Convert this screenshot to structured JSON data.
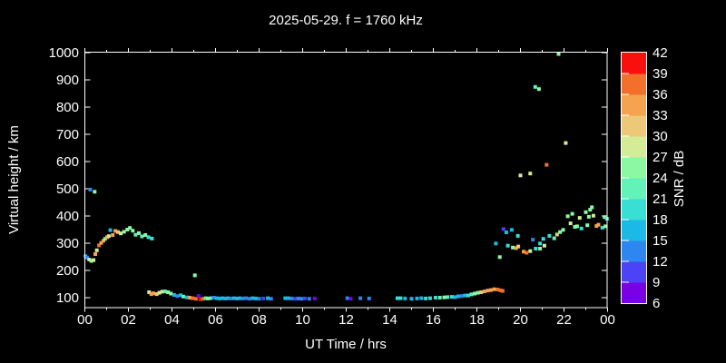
{
  "window": {
    "background": "#000000",
    "foreground": "#ffffff"
  },
  "chart_data": {
    "type": "scatter",
    "title": "2025-05-29. f = 1760 kHz",
    "xlabel": "UT Time / hrs",
    "ylabel": "Virtual height / km",
    "xlim": [
      0,
      24
    ],
    "ylim": [
      60,
      1000
    ],
    "grid": false,
    "x_major_tick_interval_hours": 2,
    "x_minor_tick_interval_hours": 1,
    "x_tick_labels": [
      "00",
      "02",
      "04",
      "06",
      "08",
      "10",
      "12",
      "14",
      "16",
      "18",
      "20",
      "22",
      "00"
    ],
    "y_ticks": [
      100,
      200,
      300,
      400,
      500,
      600,
      700,
      800,
      900,
      1000
    ],
    "y_tick_labels": [
      "100",
      "200",
      "300",
      "400",
      "500",
      "600",
      "700",
      "800",
      "900",
      "1000"
    ],
    "colorbar": {
      "label": "SNR / dB",
      "min": 6,
      "max": 42,
      "step": 3,
      "tick_labels": [
        "6",
        "9",
        "12",
        "15",
        "18",
        "21",
        "24",
        "27",
        "30",
        "33",
        "36",
        "39",
        "42"
      ],
      "palette": [
        "#7A00E6",
        "#4B43F5",
        "#2E86F0",
        "#1CB8E6",
        "#38DFD2",
        "#63F2B8",
        "#8DF8A3",
        "#D4EC96",
        "#ECC878",
        "#F5A34E",
        "#F2702C",
        "#FA0F0F"
      ]
    },
    "point_format": [
      "ut_hours",
      "virtual_height_km",
      "snr_db"
    ],
    "points": [
      [
        0.03,
        252,
        16
      ],
      [
        0.1,
        247,
        13
      ],
      [
        0.2,
        240,
        27
      ],
      [
        0.3,
        235,
        26
      ],
      [
        0.4,
        238,
        29
      ],
      [
        0.48,
        260,
        35
      ],
      [
        0.55,
        274,
        29
      ],
      [
        0.65,
        292,
        37
      ],
      [
        0.75,
        301,
        35
      ],
      [
        0.85,
        309,
        34
      ],
      [
        0.93,
        316,
        26
      ],
      [
        1.02,
        322,
        35
      ],
      [
        1.1,
        326,
        29
      ],
      [
        1.17,
        348,
        17
      ],
      [
        1.28,
        330,
        34
      ],
      [
        1.4,
        345,
        35
      ],
      [
        1.52,
        341,
        31
      ],
      [
        1.65,
        336,
        29
      ],
      [
        1.8,
        342,
        26
      ],
      [
        1.95,
        350,
        26
      ],
      [
        2.07,
        356,
        25
      ],
      [
        2.2,
        346,
        24
      ],
      [
        2.33,
        331,
        23
      ],
      [
        2.48,
        337,
        24
      ],
      [
        2.62,
        325,
        21
      ],
      [
        2.78,
        330,
        24
      ],
      [
        2.92,
        322,
        20
      ],
      [
        3.08,
        317,
        19
      ],
      [
        0.25,
        497,
        13
      ],
      [
        0.45,
        489,
        24
      ],
      [
        2.95,
        120,
        29
      ],
      [
        3.05,
        113,
        35
      ],
      [
        3.15,
        116,
        34
      ],
      [
        3.3,
        113,
        31
      ],
      [
        3.42,
        118,
        29
      ],
      [
        3.55,
        122,
        27
      ],
      [
        3.68,
        123,
        22
      ],
      [
        3.82,
        120,
        26
      ],
      [
        3.95,
        115,
        24
      ],
      [
        4.1,
        110,
        16
      ],
      [
        4.25,
        106,
        13
      ],
      [
        4.4,
        109,
        16
      ],
      [
        4.52,
        104,
        22
      ],
      [
        4.68,
        101,
        17
      ],
      [
        4.82,
        100,
        35
      ],
      [
        4.95,
        98,
        37
      ],
      [
        5.1,
        96,
        38
      ],
      [
        5.22,
        106,
        7
      ],
      [
        5.3,
        94,
        40
      ],
      [
        5.42,
        96,
        37
      ],
      [
        5.55,
        98,
        22
      ],
      [
        5.65,
        97,
        25
      ],
      [
        5.78,
        98,
        22
      ],
      [
        5.05,
        182,
        25
      ],
      [
        5.92,
        100,
        13
      ],
      [
        6.05,
        98,
        16
      ],
      [
        6.18,
        97,
        16
      ],
      [
        6.32,
        98,
        16
      ],
      [
        6.45,
        97,
        16
      ],
      [
        6.58,
        98,
        16
      ],
      [
        6.72,
        97,
        13
      ],
      [
        6.85,
        98,
        16
      ],
      [
        6.98,
        97,
        16
      ],
      [
        7.12,
        98,
        16
      ],
      [
        7.25,
        97,
        13
      ],
      [
        7.4,
        98,
        13
      ],
      [
        7.55,
        96,
        13
      ],
      [
        7.7,
        98,
        16
      ],
      [
        7.85,
        97,
        16
      ],
      [
        8.0,
        96,
        13
      ],
      [
        8.2,
        97,
        10
      ],
      [
        8.4,
        98,
        16
      ],
      [
        8.55,
        96,
        13
      ],
      [
        9.2,
        98,
        16
      ],
      [
        9.35,
        98,
        16
      ],
      [
        9.5,
        97,
        13
      ],
      [
        9.65,
        96,
        10
      ],
      [
        9.8,
        97,
        13
      ],
      [
        9.95,
        96,
        13
      ],
      [
        10.1,
        97,
        10
      ],
      [
        10.3,
        96,
        13
      ],
      [
        10.55,
        97,
        8
      ],
      [
        12.05,
        98,
        13
      ],
      [
        12.2,
        96,
        8
      ],
      [
        12.65,
        98,
        13
      ],
      [
        13.05,
        97,
        13
      ],
      [
        14.35,
        98,
        19
      ],
      [
        14.5,
        98,
        19
      ],
      [
        14.7,
        97,
        16
      ],
      [
        15.0,
        96,
        16
      ],
      [
        15.25,
        97,
        16
      ],
      [
        15.45,
        98,
        17
      ],
      [
        15.65,
        97,
        19
      ],
      [
        15.85,
        98,
        19
      ],
      [
        16.1,
        100,
        20
      ],
      [
        16.3,
        100,
        22
      ],
      [
        16.5,
        101,
        25
      ],
      [
        16.65,
        102,
        22
      ],
      [
        16.85,
        103,
        19
      ],
      [
        17.0,
        102,
        16
      ],
      [
        17.15,
        105,
        16
      ],
      [
        17.3,
        106,
        13
      ],
      [
        17.45,
        108,
        17
      ],
      [
        17.6,
        108,
        19
      ],
      [
        17.75,
        112,
        23
      ],
      [
        17.9,
        115,
        26
      ],
      [
        18.05,
        118,
        26
      ],
      [
        18.2,
        120,
        31
      ],
      [
        18.35,
        123,
        34
      ],
      [
        18.5,
        126,
        33
      ],
      [
        18.65,
        128,
        35
      ],
      [
        18.8,
        131,
        35
      ],
      [
        18.95,
        130,
        37
      ],
      [
        19.08,
        127,
        38
      ],
      [
        19.18,
        125,
        36
      ],
      [
        18.87,
        299,
        17
      ],
      [
        19.05,
        249,
        24
      ],
      [
        19.22,
        352,
        10
      ],
      [
        19.35,
        340,
        16
      ],
      [
        19.42,
        291,
        19
      ],
      [
        19.6,
        349,
        17
      ],
      [
        19.65,
        284,
        26
      ],
      [
        19.8,
        282,
        34
      ],
      [
        19.88,
        327,
        20
      ],
      [
        19.9,
        288,
        30
      ],
      [
        20.15,
        269,
        35
      ],
      [
        20.28,
        265,
        37
      ],
      [
        20.45,
        271,
        29
      ],
      [
        20.57,
        313,
        13
      ],
      [
        20.7,
        280,
        20
      ],
      [
        20.9,
        280,
        26
      ],
      [
        20.9,
        299,
        20
      ],
      [
        21.1,
        291,
        29
      ],
      [
        20.0,
        549,
        29
      ],
      [
        20.45,
        556,
        29
      ],
      [
        21.2,
        588,
        36
      ],
      [
        22.08,
        668,
        28
      ],
      [
        20.68,
        874,
        22
      ],
      [
        20.85,
        866,
        25
      ],
      [
        21.75,
        995,
        25
      ],
      [
        21.05,
        316,
        20
      ],
      [
        21.33,
        327,
        20
      ],
      [
        21.55,
        318,
        21
      ],
      [
        21.68,
        332,
        30
      ],
      [
        21.82,
        341,
        24
      ],
      [
        21.96,
        349,
        26
      ],
      [
        22.17,
        399,
        25
      ],
      [
        22.3,
        373,
        29
      ],
      [
        22.38,
        408,
        26
      ],
      [
        22.5,
        360,
        24
      ],
      [
        22.6,
        362,
        24
      ],
      [
        22.72,
        393,
        28
      ],
      [
        22.8,
        354,
        20
      ],
      [
        23.0,
        414,
        24
      ],
      [
        23.07,
        366,
        26
      ],
      [
        23.14,
        397,
        25
      ],
      [
        23.2,
        423,
        26
      ],
      [
        23.28,
        432,
        25
      ],
      [
        23.35,
        401,
        28
      ],
      [
        23.49,
        363,
        35
      ],
      [
        23.58,
        368,
        33
      ],
      [
        23.76,
        357,
        20
      ],
      [
        23.86,
        396,
        26
      ],
      [
        23.9,
        362,
        24
      ],
      [
        23.97,
        390,
        20
      ]
    ]
  }
}
